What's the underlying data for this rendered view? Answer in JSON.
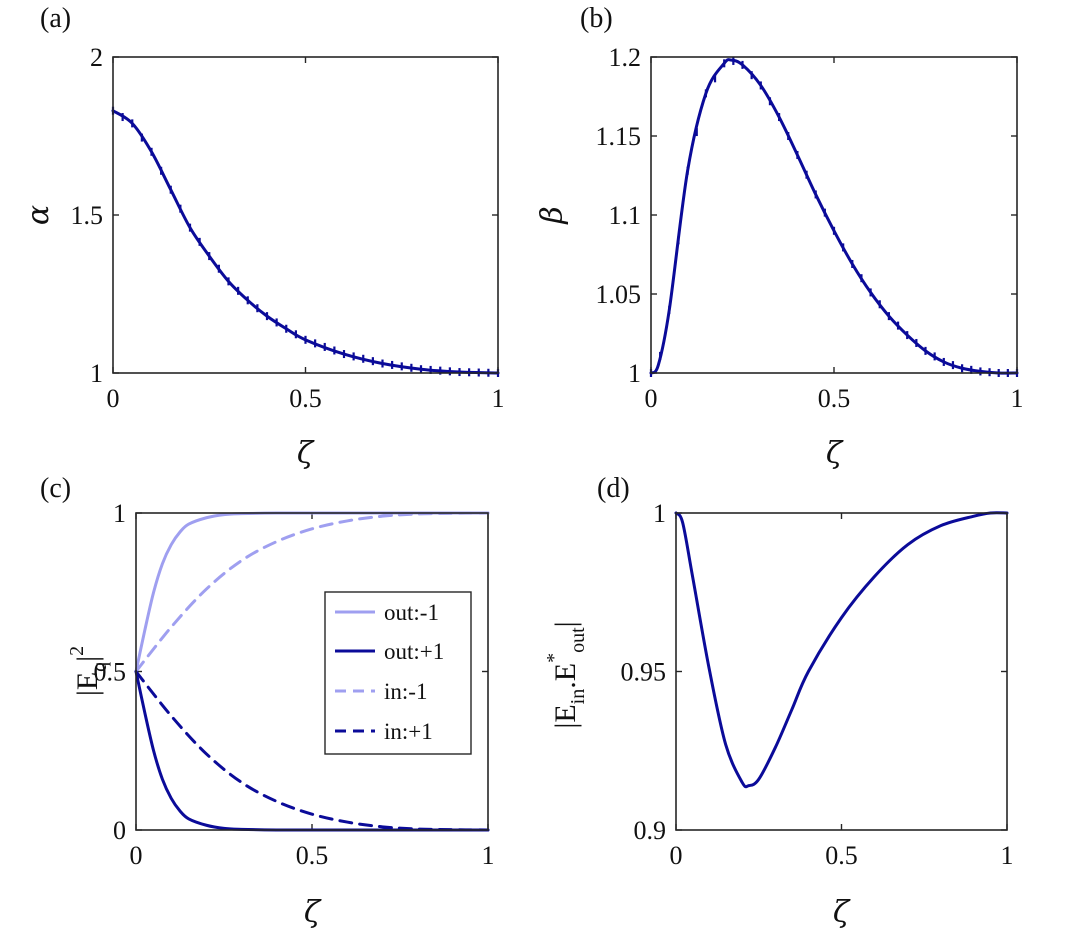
{
  "chart_data": [
    {
      "panel": "(a)",
      "type": "line",
      "xlabel": "ζ",
      "ylabel": "α",
      "xlim": [
        0,
        1
      ],
      "ylim": [
        1,
        2
      ],
      "xticks": [
        "0",
        "0.5",
        "1"
      ],
      "yticks": [
        "1",
        "1.5",
        "2"
      ],
      "markers": true,
      "series": [
        {
          "color": "#0b0b99",
          "style": "solid",
          "x": [
            0,
            0.05,
            0.1,
            0.15,
            0.2,
            0.25,
            0.3,
            0.35,
            0.4,
            0.45,
            0.5,
            0.6,
            0.7,
            0.8,
            0.9,
            1.0
          ],
          "y": [
            1.83,
            1.79,
            1.7,
            1.58,
            1.46,
            1.37,
            1.29,
            1.23,
            1.18,
            1.14,
            1.105,
            1.06,
            1.03,
            1.012,
            1.003,
            1.0
          ]
        }
      ]
    },
    {
      "panel": "(b)",
      "type": "line",
      "xlabel": "ζ",
      "ylabel": "β",
      "xlim": [
        0,
        1
      ],
      "ylim": [
        1,
        1.2
      ],
      "xticks": [
        "0",
        "0.5",
        "1"
      ],
      "yticks": [
        "1",
        "1.05",
        "1.1",
        "1.15",
        "1.2"
      ],
      "markers": true,
      "series": [
        {
          "color": "#0b0b99",
          "style": "solid",
          "x": [
            0,
            0.02,
            0.05,
            0.1,
            0.15,
            0.2,
            0.22,
            0.25,
            0.3,
            0.35,
            0.4,
            0.45,
            0.5,
            0.55,
            0.6,
            0.65,
            0.7,
            0.75,
            0.8,
            0.85,
            0.9,
            0.95,
            1.0
          ],
          "y": [
            1.0,
            1.005,
            1.04,
            1.128,
            1.177,
            1.196,
            1.198,
            1.195,
            1.182,
            1.162,
            1.138,
            1.113,
            1.09,
            1.069,
            1.051,
            1.036,
            1.024,
            1.014,
            1.007,
            1.003,
            1.001,
            1.0,
            1.0
          ]
        }
      ]
    },
    {
      "panel": "(c)",
      "type": "line",
      "xlabel": "ζ",
      "ylabel": "|E_q|^2",
      "xlim": [
        0,
        1
      ],
      "ylim": [
        0,
        1
      ],
      "xticks": [
        "0",
        "0.5",
        "1"
      ],
      "yticks": [
        "0",
        "0.5",
        "1"
      ],
      "legend": "right",
      "series": [
        {
          "name": "out:-1",
          "color": "#9f9ff0",
          "style": "solid",
          "x": [
            0,
            0.025,
            0.05,
            0.075,
            0.1,
            0.125,
            0.15,
            0.2,
            0.25,
            0.3,
            0.4,
            0.5,
            0.7,
            1.0
          ],
          "y": [
            0.5,
            0.63,
            0.75,
            0.84,
            0.9,
            0.94,
            0.965,
            0.985,
            0.995,
            0.998,
            1.0,
            1.0,
            1.0,
            1.0
          ]
        },
        {
          "name": "out:+1",
          "color": "#0b0b99",
          "style": "solid",
          "x": [
            0,
            0.025,
            0.05,
            0.075,
            0.1,
            0.125,
            0.15,
            0.2,
            0.25,
            0.3,
            0.4,
            0.5,
            0.7,
            1.0
          ],
          "y": [
            0.5,
            0.37,
            0.25,
            0.16,
            0.1,
            0.06,
            0.035,
            0.015,
            0.005,
            0.002,
            0.0,
            0.0,
            0.0,
            0.0
          ]
        },
        {
          "name": "in:-1",
          "color": "#9f9ff0",
          "style": "dashed",
          "x": [
            0,
            0.1,
            0.2,
            0.3,
            0.4,
            0.5,
            0.6,
            0.7,
            0.8,
            0.9,
            1.0
          ],
          "y": [
            0.5,
            0.64,
            0.76,
            0.85,
            0.91,
            0.95,
            0.975,
            0.99,
            0.997,
            0.999,
            1.0
          ]
        },
        {
          "name": "in:+1",
          "color": "#0b0b99",
          "style": "dashed",
          "x": [
            0,
            0.1,
            0.2,
            0.3,
            0.4,
            0.5,
            0.6,
            0.7,
            0.8,
            0.9,
            1.0
          ],
          "y": [
            0.5,
            0.36,
            0.24,
            0.15,
            0.09,
            0.05,
            0.025,
            0.01,
            0.003,
            0.001,
            0.0
          ]
        }
      ]
    },
    {
      "panel": "(d)",
      "type": "line",
      "xlabel": "ζ",
      "ylabel": "|E_in.E*_out|",
      "xlim": [
        0,
        1
      ],
      "ylim": [
        0.9,
        1
      ],
      "xticks": [
        "0",
        "0.5",
        "1"
      ],
      "yticks": [
        "0.9",
        "0.95",
        "1"
      ],
      "series": [
        {
          "color": "#0b0b99",
          "style": "solid",
          "x": [
            0,
            0.02,
            0.05,
            0.1,
            0.15,
            0.2,
            0.22,
            0.25,
            0.3,
            0.35,
            0.4,
            0.5,
            0.6,
            0.7,
            0.8,
            0.9,
            0.95,
            1.0
          ],
          "y": [
            1.0,
            0.997,
            0.98,
            0.951,
            0.927,
            0.915,
            0.914,
            0.916,
            0.926,
            0.938,
            0.95,
            0.967,
            0.98,
            0.99,
            0.996,
            0.999,
            1.0,
            1.0
          ]
        }
      ]
    }
  ]
}
